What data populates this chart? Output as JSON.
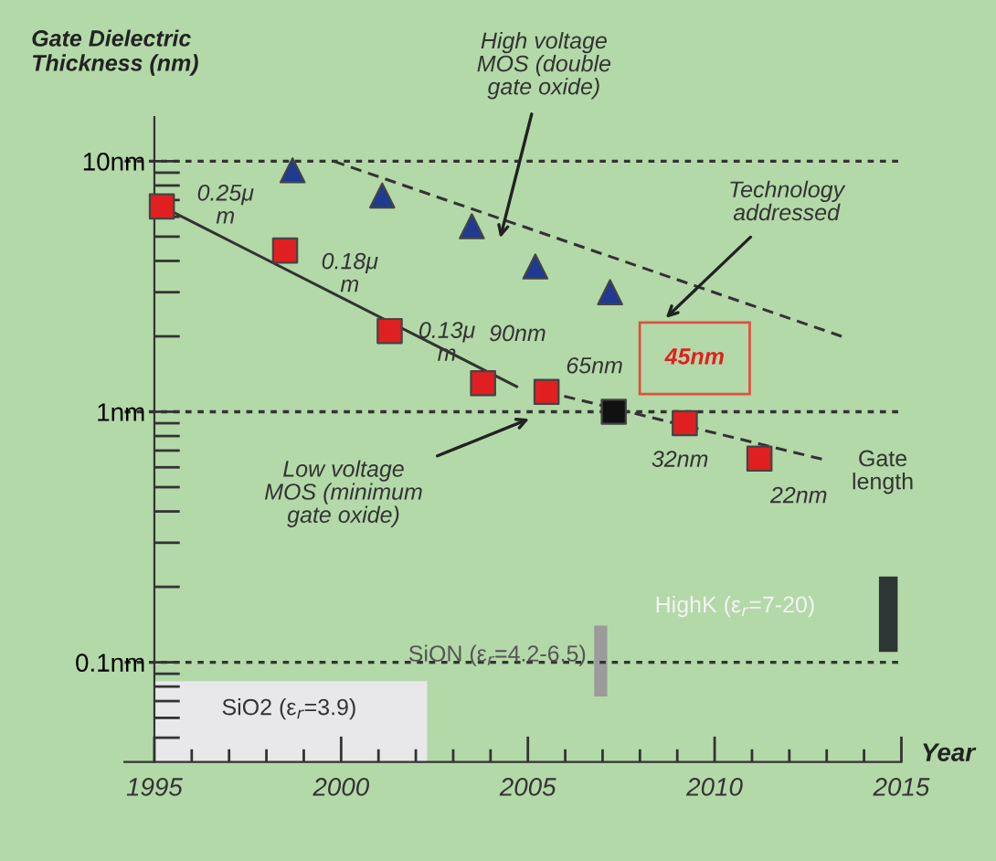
{
  "chart_data": {
    "type": "scatter",
    "ylabel": "Gate Dielectric\nThickness (nm)",
    "xlabel": "Year",
    "log": "y",
    "grid": false,
    "legend": false,
    "xlim": [
      1994.2,
      2015
    ],
    "xticks": [
      1995,
      2000,
      2005,
      2010,
      2015
    ],
    "ylim": [
      0.04,
      15
    ],
    "yticks": [
      {
        "value": 10,
        "label": "10nm"
      },
      {
        "value": 1,
        "label": "1nm"
      },
      {
        "value": 0.1,
        "label": "0.1nm"
      }
    ],
    "series": [
      {
        "type": "bar",
        "x": [
          1998.65
        ],
        "base": [
          0.04
        ],
        "values": [
          0.044
        ],
        "color": "#e8e8ea"
      },
      {
        "type": "bar",
        "x": [
          2006.95
        ],
        "base": [
          0.073
        ],
        "values": [
          0.067
        ],
        "color": "#9b9b9b"
      },
      {
        "type": "bar",
        "x": [
          2014.65
        ],
        "base": [
          0.11
        ],
        "values": [
          0.11
        ],
        "color": "#2e3535"
      },
      {
        "type": "line",
        "x": [
          1995.2,
          2004.7
        ],
        "values": [
          6.6,
          1.26
        ],
        "color": "#333333",
        "line_style": "solid",
        "marker": "none"
      },
      {
        "type": "line",
        "x": [
          2005.5,
          2013.0
        ],
        "values": [
          1.2,
          0.64
        ],
        "color": "#333333",
        "line_style": "dashed",
        "marker": "none"
      },
      {
        "type": "line",
        "x": [
          1999.8,
          2013.4
        ],
        "values": [
          10,
          2.0
        ],
        "color": "#333333",
        "line_style": "dashed",
        "marker": "none"
      },
      {
        "x": [
          1995.2,
          1998.5,
          2001.3,
          2003.8,
          2005.5,
          2009.2,
          2011.2
        ],
        "values": [
          6.6,
          4.4,
          2.1,
          1.3,
          1.2,
          0.9,
          0.65
        ],
        "color": "#e02020",
        "marker": "square"
      },
      {
        "x": [
          2007.3
        ],
        "values": [
          1.0
        ],
        "color": "#111111",
        "marker": "square"
      },
      {
        "x": [
          1998.7,
          2001.1,
          2003.5,
          2005.2,
          2007.2
        ],
        "values": [
          9.2,
          7.3,
          5.5,
          3.8,
          3.0
        ],
        "color": "#1f3a93",
        "marker": "triangle"
      }
    ],
    "ref_lines": [
      {
        "axis": "y",
        "value": 10,
        "color": "#333333",
        "line_style": "dotted"
      },
      {
        "axis": "y",
        "value": 1,
        "color": "#333333",
        "line_style": "dotted"
      },
      {
        "axis": "y",
        "value": 0.1,
        "color": "#333333",
        "line_style": "dotted"
      }
    ],
    "annotations": [
      "High voltage\nMOS (double\ngate oxide)",
      "Technology\naddressed",
      "45nm",
      "Low voltage\nMOS (minimum\ngate oxide)",
      "0.25μ\nm",
      "0.18μ\nm",
      "0.13μ\nm",
      "90nm",
      "65nm",
      "32nm",
      "22nm",
      "Gate\nlength",
      "SiO2 (ε$_{r}$=3.9)",
      "SiON (ε$_{r}$=4.2-6.5)",
      "HighK (ε$_{r}$=7-20)"
    ]
  }
}
